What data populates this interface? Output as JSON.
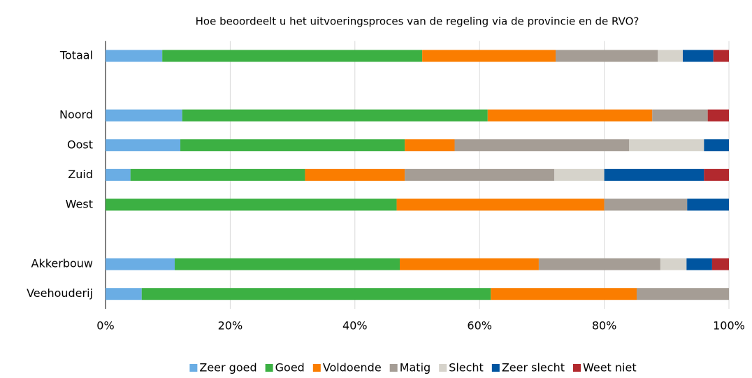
{
  "chart_data": {
    "type": "stacked-bar-horizontal",
    "title": "Hoe beoordeelt u het uitvoeringsproces van de regeling via de provincie en de RVO?",
    "categories": [
      "Totaal",
      null,
      "Noord",
      "Oost",
      "Zuid",
      "West",
      null,
      "Akkerbouw",
      "Veehouderij"
    ],
    "series": [
      {
        "name": "Zeer goed",
        "color": "#6aade4",
        "values": [
          9.1,
          null,
          12.3,
          12,
          4,
          0,
          null,
          11.1,
          5.8
        ]
      },
      {
        "name": "Goed",
        "color": "#3cb043",
        "values": [
          41.7,
          null,
          49.0,
          36,
          28,
          46.7,
          null,
          36.1,
          56.0
        ]
      },
      {
        "name": "Voldoende",
        "color": "#fa7d00",
        "values": [
          21.4,
          null,
          26.4,
          8,
          16,
          33.3,
          null,
          22.3,
          23.4
        ]
      },
      {
        "name": "Matig",
        "color": "#a59d95",
        "values": [
          16.4,
          null,
          8.9,
          28,
          24,
          13.3,
          null,
          19.5,
          14.8
        ]
      },
      {
        "name": "Slecht",
        "color": "#d6d3cb",
        "values": [
          4.0,
          null,
          0,
          12,
          8,
          0,
          null,
          4.2,
          0
        ]
      },
      {
        "name": "Zeer slecht",
        "color": "#0055a0",
        "values": [
          4.9,
          null,
          0,
          4,
          16,
          6.7,
          null,
          4.1,
          0
        ]
      },
      {
        "name": "Weet niet",
        "color": "#b2292e",
        "values": [
          2.5,
          null,
          3.4,
          0,
          4,
          0,
          null,
          2.7,
          0
        ]
      }
    ],
    "xlim": [
      0,
      100
    ],
    "xticks": [
      {
        "value": 0,
        "label": "0%"
      },
      {
        "value": 20,
        "label": "20%"
      },
      {
        "value": 40,
        "label": "40%"
      },
      {
        "value": 60,
        "label": "60%"
      },
      {
        "value": 80,
        "label": "80%"
      },
      {
        "value": 100,
        "label": "100%"
      }
    ],
    "grid": true,
    "legend": "bottom"
  }
}
